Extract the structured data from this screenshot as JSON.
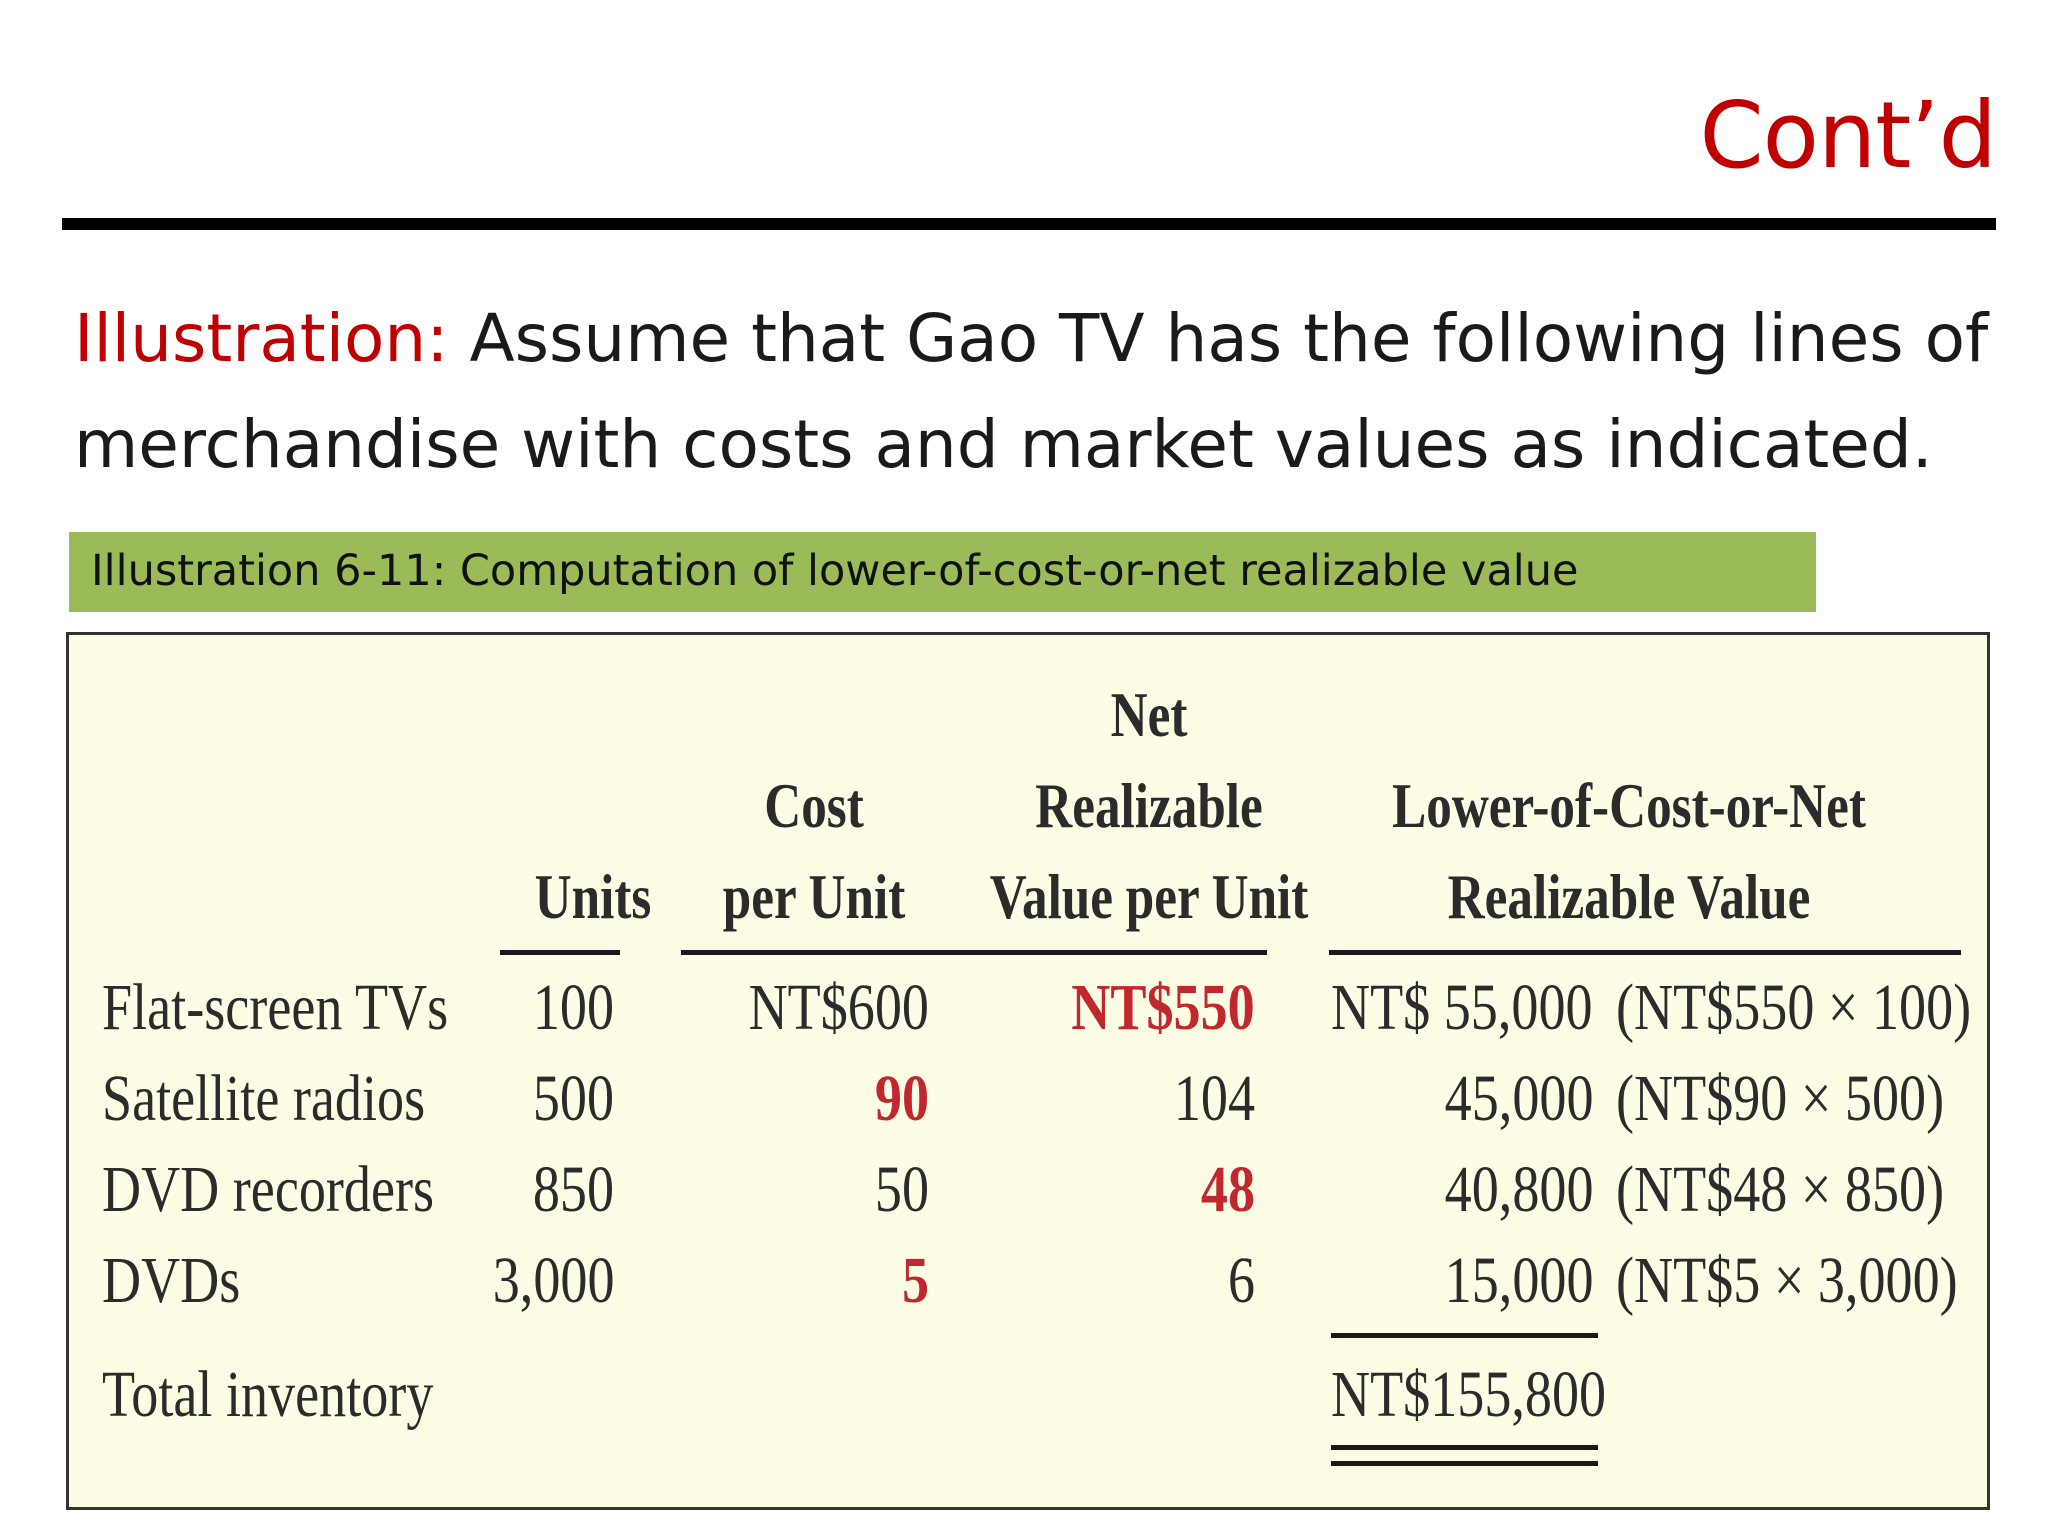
{
  "slide": {
    "title": "Cont’d",
    "intro_lead": "Illustration:",
    "intro_text": " Assume that Gao TV has the following lines of merchandise with costs and market values as indicated.",
    "caption": "Illustration 6-11: Computation of lower-of-cost-or-net realizable value"
  },
  "table": {
    "headers": {
      "units": "Units",
      "cost_1": "Cost",
      "cost_2": "per Unit",
      "nrv_1": "Net",
      "nrv_2": "Realizable",
      "nrv_3": "Value per Unit",
      "lcnrv_1": "Lower-of-Cost-or-Net",
      "lcnrv_2": "Realizable Value"
    },
    "rows": [
      {
        "item": "Flat-screen TVs",
        "units": "100",
        "cost": "NT$600",
        "nrv": "NT$550",
        "lower": "NT$  55,000",
        "calc": "(NT$550 × 100)",
        "lower_of": "nrv"
      },
      {
        "item": "Satellite radios",
        "units": "500",
        "cost": "90",
        "nrv": "104",
        "lower": "45,000",
        "calc": "(NT$90 × 500)",
        "lower_of": "cost"
      },
      {
        "item": "DVD recorders",
        "units": "850",
        "cost": "50",
        "nrv": "48",
        "lower": "40,800",
        "calc": "(NT$48 × 850)",
        "lower_of": "nrv"
      },
      {
        "item": "DVDs",
        "units": "3,000",
        "cost": "5",
        "nrv": "6",
        "lower": "15,000",
        "calc": "(NT$5 × 3,000)",
        "lower_of": "cost"
      }
    ],
    "total_label": "Total inventory",
    "total_value": "NT$155,800"
  },
  "colors": {
    "accent_red": "#c00000",
    "highlight_red": "#c0282d",
    "caption_green": "#9bbb59",
    "panel_bg": "#fdfde6"
  }
}
